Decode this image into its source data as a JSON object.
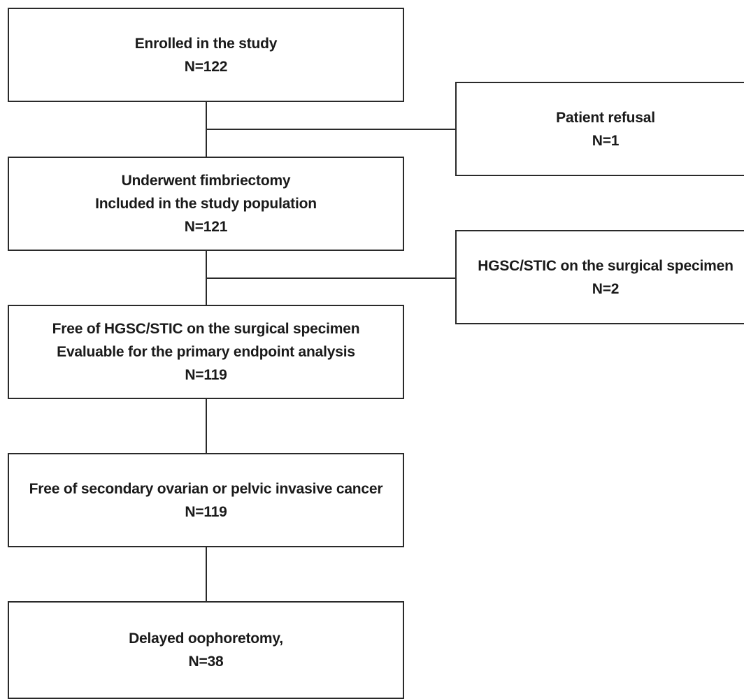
{
  "main_flow": [
    {
      "lines": [
        "Enrolled in the study",
        "N=122"
      ]
    },
    {
      "lines": [
        "Underwent fimbriectomy",
        "Included in the study population",
        "N=121"
      ]
    },
    {
      "lines": [
        "Free of HGSC/STIC on the surgical specimen",
        "Evaluable for the primary endpoint analysis",
        "N=119"
      ]
    },
    {
      "lines": [
        "Free of secondary ovarian or pelvic invasive cancer",
        "N=119"
      ]
    },
    {
      "lines": [
        "Delayed oophoretomy,",
        "N=38"
      ]
    }
  ],
  "exclusions": [
    {
      "lines": [
        "Patient refusal",
        "N=1"
      ]
    },
    {
      "lines": [
        "HGSC/STIC on the surgical specimen",
        "N=2"
      ]
    }
  ]
}
